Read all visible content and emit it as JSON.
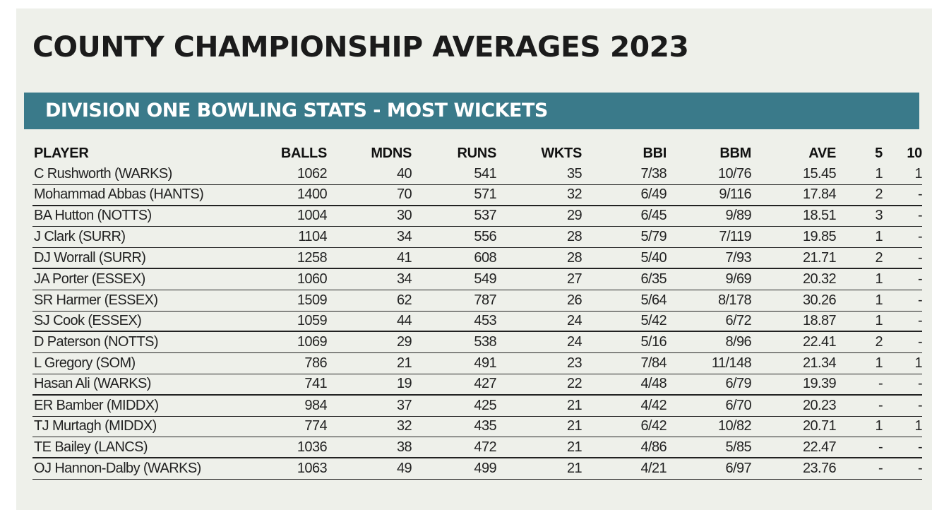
{
  "title": "COUNTY CHAMPIONSHIP  AVERAGES 2023",
  "subtitle": "DIVISION ONE BOWLING STATS - MOST WICKETS",
  "colors": {
    "banner": "#3a7a8a",
    "panel": "#eef0ea"
  },
  "columns": [
    "PLAYER",
    "BALLS",
    "MDNS",
    "RUNS",
    "WKTS",
    "BBI",
    "BBM",
    "AVE",
    "5",
    "10"
  ],
  "rows": [
    [
      "C Rushworth (WARKS)",
      "1062",
      "40",
      "541",
      "35",
      "7/38",
      "10/76",
      "15.45",
      "1",
      "1"
    ],
    [
      "Mohammad Abbas (HANTS)",
      "1400",
      "70",
      "571",
      "32",
      "6/49",
      "9/116",
      "17.84",
      "2",
      "-"
    ],
    [
      "BA Hutton (NOTTS)",
      "1004",
      "30",
      "537",
      "29",
      "6/45",
      "9/89",
      "18.51",
      "3",
      "-"
    ],
    [
      "J Clark (SURR)",
      "1104",
      "34",
      "556",
      "28",
      "5/79",
      "7/119",
      "19.85",
      "1",
      "-"
    ],
    [
      "DJ Worrall (SURR)",
      "1258",
      "41",
      "608",
      "28",
      "5/40",
      "7/93",
      "21.71",
      "2",
      "-"
    ],
    [
      "JA Porter (ESSEX)",
      "1060",
      "34",
      "549",
      "27",
      "6/35",
      "9/69",
      "20.32",
      "1",
      "-"
    ],
    [
      "SR Harmer (ESSEX)",
      "1509",
      "62",
      "787",
      "26",
      "5/64",
      "8/178",
      "30.26",
      "1",
      "-"
    ],
    [
      "SJ Cook (ESSEX)",
      "1059",
      "44",
      "453",
      "24",
      "5/42",
      "6/72",
      "18.87",
      "1",
      "-"
    ],
    [
      "D Paterson (NOTTS)",
      "1069",
      "29",
      "538",
      "24",
      "5/16",
      "8/96",
      "22.41",
      "2",
      "-"
    ],
    [
      "L Gregory (SOM)",
      "786",
      "21",
      "491",
      "23",
      "7/84",
      "11/148",
      "21.34",
      "1",
      "1"
    ],
    [
      "Hasan Ali (WARKS)",
      "741",
      "19",
      "427",
      "22",
      "4/48",
      "6/79",
      "19.39",
      "-",
      "-"
    ],
    [
      "ER Bamber (MIDDX)",
      "984",
      "37",
      "425",
      "21",
      "4/42",
      "6/70",
      "20.23",
      "-",
      "-"
    ],
    [
      "TJ Murtagh (MIDDX)",
      "774",
      "32",
      "435",
      "21",
      "6/42",
      "10/82",
      "20.71",
      "1",
      "1"
    ],
    [
      "TE Bailey (LANCS)",
      "1036",
      "38",
      "472",
      "21",
      "4/86",
      "5/85",
      "22.47",
      "-",
      "-"
    ],
    [
      "OJ Hannon-Dalby (WARKS)",
      "1063",
      "49",
      "499",
      "21",
      "4/21",
      "6/97",
      "23.76",
      "-",
      "-"
    ]
  ]
}
